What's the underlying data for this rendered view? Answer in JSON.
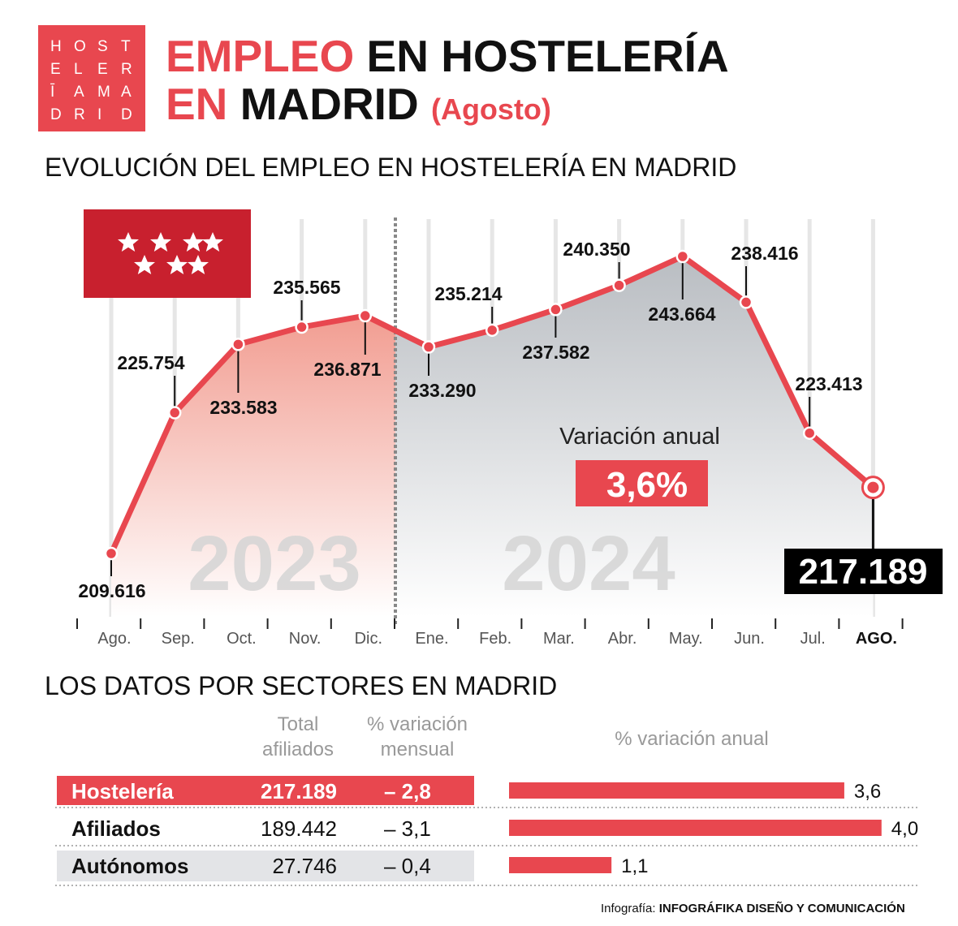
{
  "header": {
    "logo": [
      "HOST",
      "ELER",
      "ĪAMA",
      "DRID"
    ],
    "title": {
      "line1": [
        "EMPLEO",
        "EN HOSTELERÍA"
      ],
      "line2": [
        "EN",
        "MADRID"
      ],
      "month": "(Agosto)"
    }
  },
  "chart_data": [
    {
      "type": "line",
      "title": "EVOLUCIÓN DEL EMPLEO EN HOSTELERÍA EN MADRID",
      "categories": [
        "Ago.",
        "Sep.",
        "Oct.",
        "Nov.",
        "Dic.",
        "Ene.",
        "Feb.",
        "Mar.",
        "Abr.",
        "May.",
        "Jun.",
        "Jul.",
        "AGO."
      ],
      "values": [
        209616,
        225754,
        233583,
        235565,
        236871,
        233290,
        235214,
        237582,
        240350,
        243664,
        238416,
        223413,
        217189
      ],
      "value_labels": [
        "209.616",
        "225.754",
        "233.583",
        "235.565",
        "236.871",
        "233.290",
        "235.214",
        "237.582",
        "240.350",
        "243.664",
        "238.416",
        "223.413",
        "217.189"
      ],
      "color": "#e8474f",
      "period_labels": [
        "2023",
        "2024"
      ],
      "annotation": {
        "title": "Variación anual",
        "value_label": "3,6%"
      }
    },
    {
      "type": "bar",
      "title": "% variación anual",
      "categories": [
        "Hostelería",
        "Afiliados",
        "Autónomos"
      ],
      "values": [
        3.6,
        4.0,
        1.1
      ],
      "value_labels": [
        "3,6",
        "4,0",
        "1,1"
      ],
      "color": "#e8474f"
    }
  ],
  "sectors": {
    "title": "LOS DATOS POR SECTORES EN MADRID",
    "columns": [
      [
        "Total",
        "afiliados"
      ],
      [
        "% variación",
        "mensual"
      ]
    ],
    "rows": [
      [
        "217.189",
        "– 2,8"
      ],
      [
        "189.442",
        "– 3,1"
      ],
      [
        "27.746",
        "– 0,4"
      ]
    ]
  },
  "credit": {
    "label": "Infografía:",
    "author": "INFOGRÁFIKA DISEÑO Y COMUNICACIÓN"
  }
}
